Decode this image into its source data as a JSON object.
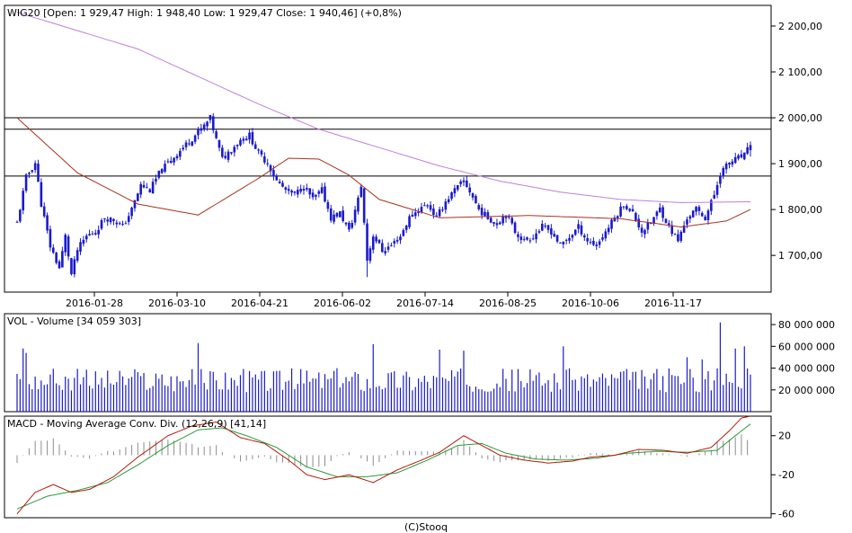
{
  "footer": "(C)Stooq",
  "colors": {
    "candle": "#1a1acc",
    "sma_long": "#c07fdc",
    "sma_mid": "#a8321e",
    "macd": "#b51a0a",
    "signal": "#2a9a3a",
    "histogram": "#8c8c8c",
    "frame": "#000000",
    "hline": "#000000"
  },
  "chart_data": [
    {
      "type": "candlestick",
      "title": "WIG20 [Open: 1 929,47  High: 1 948,40  Low: 1 929,47  Close: 1 940,46] (+0,8%)",
      "x_tick_labels": [
        "2016-01-28",
        "2016-03-10",
        "2016-04-21",
        "2016-06-02",
        "2016-07-14",
        "2016-08-25",
        "2016-10-06",
        "2016-11-17"
      ],
      "y_tick_labels": [
        "2 200,00",
        "2 100,00",
        "2 000,00",
        "1 900,00",
        "1 800,00",
        "1 700,00"
      ],
      "y_ticks": [
        2200,
        2100,
        2000,
        1900,
        1800,
        1700
      ],
      "ylim": [
        1620,
        2245
      ],
      "horizontal_levels": [
        2000,
        1975,
        1873
      ],
      "last": {
        "open": 1929.47,
        "high": 1948.4,
        "low": 1929.47,
        "close": 1940.46
      },
      "price_anchors": [
        [
          0,
          1770
        ],
        [
          3,
          1870
        ],
        [
          6,
          1902
        ],
        [
          8,
          1812
        ],
        [
          11,
          1720
        ],
        [
          14,
          1672
        ],
        [
          16,
          1742
        ],
        [
          18,
          1658
        ],
        [
          20,
          1712
        ],
        [
          23,
          1742
        ],
        [
          26,
          1752
        ],
        [
          29,
          1782
        ],
        [
          32,
          1778
        ],
        [
          35,
          1762
        ],
        [
          38,
          1800
        ],
        [
          41,
          1853
        ],
        [
          44,
          1842
        ],
        [
          47,
          1878
        ],
        [
          50,
          1902
        ],
        [
          53,
          1922
        ],
        [
          56,
          1942
        ],
        [
          59,
          1962
        ],
        [
          62,
          1982
        ],
        [
          64,
          1999
        ],
        [
          66,
          1952
        ],
        [
          68,
          1910
        ],
        [
          71,
          1932
        ],
        [
          74,
          1952
        ],
        [
          77,
          1962
        ],
        [
          80,
          1922
        ],
        [
          83,
          1902
        ],
        [
          86,
          1862
        ],
        [
          89,
          1842
        ],
        [
          92,
          1832
        ],
        [
          95,
          1852
        ],
        [
          98,
          1822
        ],
        [
          101,
          1842
        ],
        [
          104,
          1782
        ],
        [
          107,
          1792
        ],
        [
          110,
          1752
        ],
        [
          113,
          1822
        ],
        [
          114,
          1852
        ],
        [
          116,
          1690
        ],
        [
          118,
          1745
        ],
        [
          121,
          1710
        ],
        [
          124,
          1722
        ],
        [
          127,
          1742
        ],
        [
          130,
          1782
        ],
        [
          133,
          1800
        ],
        [
          136,
          1812
        ],
        [
          139,
          1782
        ],
        [
          142,
          1818
        ],
        [
          145,
          1842
        ],
        [
          148,
          1862
        ],
        [
          150,
          1840
        ],
        [
          153,
          1800
        ],
        [
          156,
          1782
        ],
        [
          159,
          1770
        ],
        [
          162,
          1792
        ],
        [
          165,
          1752
        ],
        [
          168,
          1732
        ],
        [
          171,
          1742
        ],
        [
          174,
          1762
        ],
        [
          177,
          1752
        ],
        [
          180,
          1722
        ],
        [
          183,
          1740
        ],
        [
          186,
          1762
        ],
        [
          189,
          1732
        ],
        [
          192,
          1722
        ],
        [
          195,
          1752
        ],
        [
          198,
          1782
        ],
        [
          201,
          1812
        ],
        [
          204,
          1792
        ],
        [
          207,
          1752
        ],
        [
          210,
          1772
        ],
        [
          213,
          1802
        ],
        [
          216,
          1762
        ],
        [
          219,
          1732
        ],
        [
          222,
          1782
        ],
        [
          225,
          1800
        ],
        [
          228,
          1782
        ],
        [
          231,
          1832
        ],
        [
          233,
          1880
        ],
        [
          236,
          1902
        ],
        [
          239,
          1912
        ],
        [
          241,
          1918
        ],
        [
          243,
          1940
        ]
      ],
      "sma_long": [
        [
          0,
          2230
        ],
        [
          40,
          2150
        ],
        [
          80,
          2030
        ],
        [
          100,
          1975
        ],
        [
          120,
          1935
        ],
        [
          140,
          1895
        ],
        [
          160,
          1862
        ],
        [
          180,
          1838
        ],
        [
          200,
          1822
        ],
        [
          220,
          1815
        ],
        [
          243,
          1817
        ]
      ],
      "sma_mid": [
        [
          0,
          2000
        ],
        [
          20,
          1880
        ],
        [
          40,
          1812
        ],
        [
          60,
          1788
        ],
        [
          80,
          1868
        ],
        [
          90,
          1912
        ],
        [
          100,
          1910
        ],
        [
          110,
          1875
        ],
        [
          120,
          1822
        ],
        [
          140,
          1782
        ],
        [
          170,
          1787
        ],
        [
          200,
          1780
        ],
        [
          220,
          1762
        ],
        [
          235,
          1775
        ],
        [
          243,
          1800
        ]
      ]
    },
    {
      "type": "bar",
      "title": "VOL - Volume [34 059 303]",
      "y_tick_labels": [
        "80 000 000",
        "60 000 000",
        "40 000 000",
        "20 000 000"
      ],
      "y_ticks": [
        80000000,
        60000000,
        40000000,
        20000000
      ],
      "ylim": [
        0,
        90000000
      ],
      "last_value": 34059303,
      "spikes": [
        [
          2,
          58000000
        ],
        [
          3,
          54000000
        ],
        [
          60,
          63000000
        ],
        [
          118,
          62000000
        ],
        [
          140,
          57000000
        ],
        [
          148,
          56000000
        ],
        [
          181,
          60000000
        ],
        [
          222,
          50000000
        ],
        [
          227,
          48000000
        ],
        [
          233,
          82000000
        ],
        [
          238,
          58000000
        ],
        [
          241,
          60000000
        ]
      ]
    },
    {
      "type": "line",
      "title": "MACD - Moving Average Conv. Div. (12,26,9) [41,14]",
      "y_tick_labels": [
        "20",
        "-20",
        "-60"
      ],
      "y_ticks": [
        20,
        -20,
        -60
      ],
      "ylim": [
        -64,
        40
      ],
      "last_value": 41.14,
      "series": [
        {
          "key": "macd",
          "anchors": [
            [
              0,
              -60
            ],
            [
              6,
              -38
            ],
            [
              12,
              -30
            ],
            [
              18,
              -38
            ],
            [
              24,
              -35
            ],
            [
              32,
              -22
            ],
            [
              40,
              -2
            ],
            [
              50,
              20
            ],
            [
              58,
              30
            ],
            [
              66,
              34
            ],
            [
              74,
              18
            ],
            [
              82,
              12
            ],
            [
              90,
              -5
            ],
            [
              96,
              -20
            ],
            [
              102,
              -25
            ],
            [
              110,
              -20
            ],
            [
              118,
              -28
            ],
            [
              126,
              -15
            ],
            [
              134,
              -5
            ],
            [
              140,
              3
            ],
            [
              148,
              20
            ],
            [
              154,
              10
            ],
            [
              160,
              0
            ],
            [
              168,
              -5
            ],
            [
              176,
              -8
            ],
            [
              184,
              -6
            ],
            [
              190,
              -2
            ],
            [
              198,
              0
            ],
            [
              206,
              6
            ],
            [
              214,
              5
            ],
            [
              222,
              2
            ],
            [
              230,
              8
            ],
            [
              236,
              25
            ],
            [
              240,
              38
            ],
            [
              243,
              40
            ]
          ]
        },
        {
          "key": "signal",
          "anchors": [
            [
              0,
              -55
            ],
            [
              10,
              -42
            ],
            [
              20,
              -36
            ],
            [
              30,
              -28
            ],
            [
              40,
              -10
            ],
            [
              50,
              10
            ],
            [
              60,
              26
            ],
            [
              68,
              28
            ],
            [
              76,
              20
            ],
            [
              86,
              8
            ],
            [
              96,
              -12
            ],
            [
              106,
              -22
            ],
            [
              116,
              -22
            ],
            [
              126,
              -18
            ],
            [
              136,
              -5
            ],
            [
              146,
              10
            ],
            [
              154,
              12
            ],
            [
              162,
              2
            ],
            [
              172,
              -4
            ],
            [
              182,
              -5
            ],
            [
              192,
              -3
            ],
            [
              202,
              2
            ],
            [
              212,
              4
            ],
            [
              222,
              3
            ],
            [
              232,
              5
            ],
            [
              238,
              20
            ],
            [
              243,
              32
            ]
          ]
        }
      ]
    }
  ]
}
